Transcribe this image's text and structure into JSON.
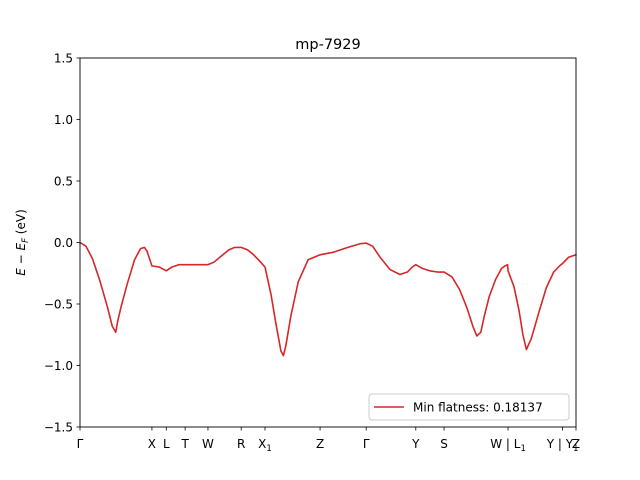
{
  "chart_data": {
    "type": "line",
    "title": "mp-7929",
    "xlabel": "",
    "ylabel": "E − E_F (eV)",
    "ylabel_parts": {
      "e": "E",
      "minus": " − ",
      "ef": "E",
      "ef_sub": "F",
      "unit": " (eV)"
    },
    "xlim": [
      0,
      1
    ],
    "ylim": [
      -1.5,
      1.5
    ],
    "yticks": [
      {
        "value": -1.5,
        "label": "−1.5"
      },
      {
        "value": -1.0,
        "label": "−1.0"
      },
      {
        "value": -0.5,
        "label": "−0.5"
      },
      {
        "value": 0.0,
        "label": "0.0"
      },
      {
        "value": 0.5,
        "label": "0.5"
      },
      {
        "value": 1.0,
        "label": "1.0"
      },
      {
        "value": 1.5,
        "label": "1.5"
      }
    ],
    "xticks": [
      {
        "position": 0.0,
        "label": "Γ"
      },
      {
        "position": 0.145,
        "label": "X"
      },
      {
        "position": 0.174,
        "label": "L"
      },
      {
        "position": 0.212,
        "label": "T"
      },
      {
        "position": 0.258,
        "label": "W"
      },
      {
        "position": 0.325,
        "label": "R"
      },
      {
        "position": 0.373,
        "label": "X",
        "sub": "1"
      },
      {
        "position": 0.484,
        "label": "Z"
      },
      {
        "position": 0.577,
        "label": "Γ"
      },
      {
        "position": 0.677,
        "label": "Y"
      },
      {
        "position": 0.734,
        "label": "S"
      },
      {
        "position": 0.863,
        "label": "W | L",
        "sub": "1"
      },
      {
        "position": 0.973,
        "label": "Y | Y",
        "sub": "1"
      },
      {
        "position": 1.0,
        "label": "Z"
      }
    ],
    "series": [
      {
        "name": "Min flatness: 0.18137",
        "color": "#d62728",
        "x": [
          0.0,
          0.012,
          0.025,
          0.04,
          0.055,
          0.065,
          0.072,
          0.076,
          0.083,
          0.095,
          0.11,
          0.122,
          0.13,
          0.135,
          0.14,
          0.145,
          0.16,
          0.174,
          0.185,
          0.2,
          0.212,
          0.235,
          0.258,
          0.27,
          0.285,
          0.3,
          0.312,
          0.325,
          0.338,
          0.35,
          0.362,
          0.373,
          0.385,
          0.395,
          0.405,
          0.41,
          0.415,
          0.425,
          0.44,
          0.46,
          0.484,
          0.51,
          0.54,
          0.565,
          0.577,
          0.59,
          0.605,
          0.625,
          0.645,
          0.66,
          0.67,
          0.677,
          0.69,
          0.705,
          0.72,
          0.734,
          0.75,
          0.765,
          0.78,
          0.792,
          0.8,
          0.808,
          0.815,
          0.825,
          0.838,
          0.85,
          0.857,
          0.86,
          0.862,
          0.863,
          0.875,
          0.885,
          0.893,
          0.9,
          0.91,
          0.925,
          0.94,
          0.955,
          0.967,
          0.973,
          0.985,
          1.0
        ],
        "y": [
          0.0,
          -0.03,
          -0.13,
          -0.31,
          -0.52,
          -0.68,
          -0.73,
          -0.64,
          -0.52,
          -0.34,
          -0.14,
          -0.05,
          -0.04,
          -0.07,
          -0.13,
          -0.19,
          -0.2,
          -0.23,
          -0.2,
          -0.18,
          -0.18,
          -0.18,
          -0.18,
          -0.16,
          -0.11,
          -0.06,
          -0.04,
          -0.04,
          -0.06,
          -0.1,
          -0.15,
          -0.2,
          -0.42,
          -0.66,
          -0.88,
          -0.92,
          -0.84,
          -0.6,
          -0.32,
          -0.14,
          -0.1,
          -0.08,
          -0.04,
          -0.01,
          -0.005,
          -0.03,
          -0.12,
          -0.22,
          -0.26,
          -0.24,
          -0.2,
          -0.18,
          -0.21,
          -0.23,
          -0.24,
          -0.24,
          -0.28,
          -0.38,
          -0.53,
          -0.68,
          -0.76,
          -0.73,
          -0.6,
          -0.44,
          -0.3,
          -0.21,
          -0.19,
          -0.185,
          -0.18,
          -0.23,
          -0.36,
          -0.55,
          -0.75,
          -0.87,
          -0.78,
          -0.57,
          -0.37,
          -0.24,
          -0.19,
          -0.17,
          -0.12,
          -0.1
        ]
      }
    ],
    "legend": {
      "label": "Min flatness: 0.18137",
      "placement": "lower-right"
    },
    "grid": false
  }
}
